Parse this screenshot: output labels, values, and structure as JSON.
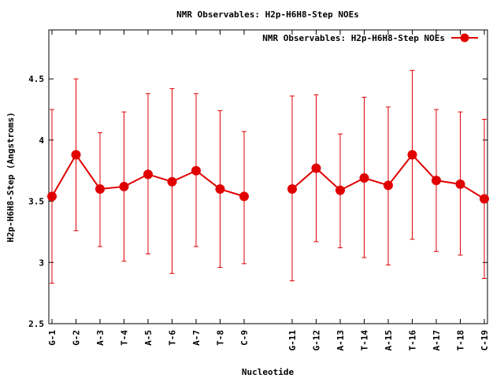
{
  "chart_data": {
    "type": "line",
    "title": "NMR Observables: H2p-H6H8-Step NOEs",
    "xlabel": "Nucleotide",
    "ylabel": "H2p-H6H8-Step (Angstroms)",
    "ylim": [
      2.5,
      4.9
    ],
    "yticks": [
      2.5,
      3,
      3.5,
      4,
      4.5
    ],
    "ytick_labels": [
      "2.5",
      "3",
      "3.5",
      "4",
      "4.5"
    ],
    "grid": false,
    "legend_position": "top-right",
    "categories": [
      "G-1",
      "G-2",
      "A-3",
      "T-4",
      "A-5",
      "T-6",
      "A-7",
      "T-8",
      "C-9",
      "G-11",
      "G-12",
      "A-13",
      "T-14",
      "A-15",
      "T-16",
      "A-17",
      "T-18",
      "C-19"
    ],
    "x": [
      1,
      2,
      3,
      4,
      5,
      6,
      7,
      8,
      9,
      11,
      12,
      13,
      14,
      15,
      16,
      17,
      18,
      19
    ],
    "xlim": [
      1,
      19
    ],
    "series": [
      {
        "name": "NMR Observables: H2p-H6H8-Step NOEs",
        "color": "#e00000",
        "values": [
          3.54,
          3.88,
          3.6,
          3.62,
          3.72,
          3.66,
          3.75,
          3.6,
          3.54,
          3.6,
          3.77,
          3.59,
          3.69,
          3.63,
          3.88,
          3.67,
          3.64,
          3.52
        ],
        "err_low": [
          2.83,
          3.26,
          3.13,
          3.01,
          3.07,
          2.91,
          3.13,
          2.96,
          2.99,
          2.85,
          3.17,
          3.12,
          3.04,
          2.98,
          3.19,
          3.09,
          3.06,
          2.87
        ],
        "err_high": [
          4.25,
          4.5,
          4.06,
          4.23,
          4.38,
          4.42,
          4.38,
          4.24,
          4.07,
          4.36,
          4.37,
          4.05,
          4.35,
          4.27,
          4.57,
          4.25,
          4.23,
          4.17
        ]
      }
    ]
  }
}
